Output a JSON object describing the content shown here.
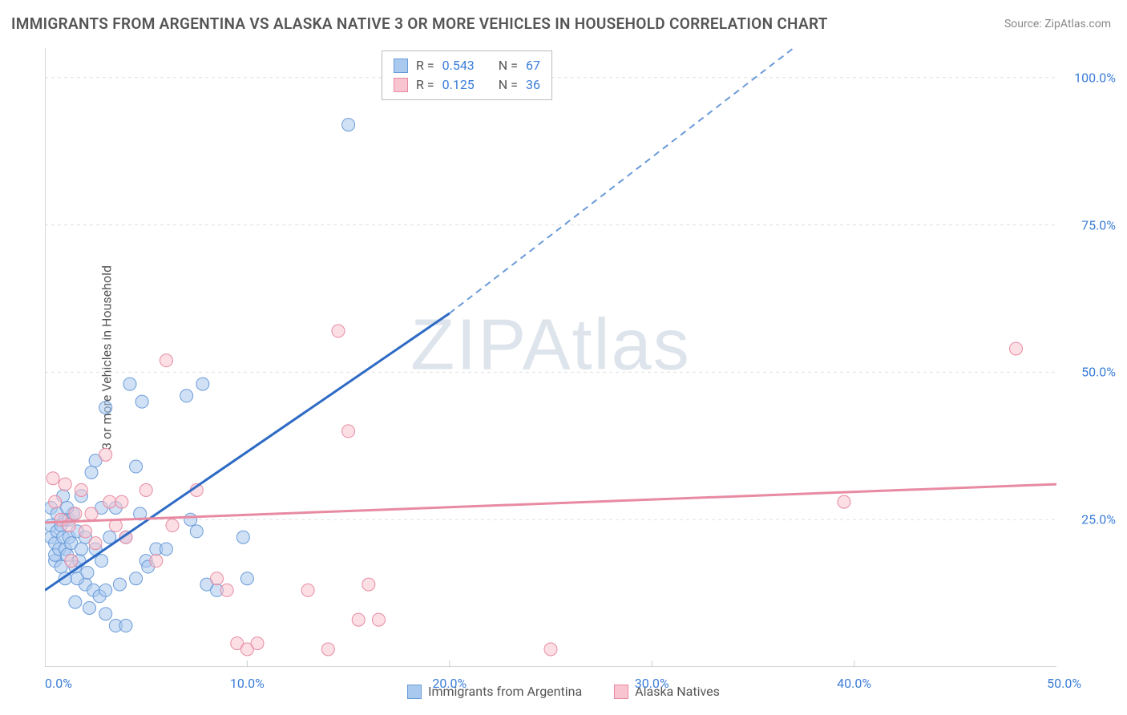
{
  "title": "IMMIGRANTS FROM ARGENTINA VS ALASKA NATIVE 3 OR MORE VEHICLES IN HOUSEHOLD CORRELATION CHART",
  "source": "Source: ZipAtlas.com",
  "y_axis_label": "3 or more Vehicles in Household",
  "watermark": "ZIPAtlas",
  "chart": {
    "type": "scatter",
    "xlim": [
      0,
      50
    ],
    "ylim": [
      0,
      105
    ],
    "x_ticks": [
      0,
      10,
      20,
      30,
      40,
      50
    ],
    "y_ticks": [
      25,
      50,
      75,
      100
    ],
    "x_tick_labels": [
      "0.0%",
      "10.0%",
      "20.0%",
      "30.0%",
      "40.0%",
      "50.0%"
    ],
    "y_tick_labels": [
      "25.0%",
      "50.0%",
      "75.0%",
      "100.0%"
    ],
    "grid_color": "#e0e0e0",
    "axis_color": "#cccccc",
    "background_color": "#ffffff",
    "tick_label_color": "#3b7dd8",
    "marker_radius": 8,
    "marker_opacity": 0.55,
    "series": [
      {
        "name": "Immigrants from Argentina",
        "fill": "#a9c9ee",
        "stroke": "#6a9bd8",
        "points": [
          [
            0.3,
            22
          ],
          [
            0.3,
            24
          ],
          [
            0.3,
            27
          ],
          [
            0.5,
            18
          ],
          [
            0.5,
            21
          ],
          [
            0.5,
            19
          ],
          [
            0.6,
            23
          ],
          [
            0.6,
            26
          ],
          [
            0.7,
            20
          ],
          [
            0.8,
            24
          ],
          [
            0.8,
            17
          ],
          [
            0.9,
            29
          ],
          [
            0.9,
            22
          ],
          [
            1.0,
            20
          ],
          [
            1.0,
            15
          ],
          [
            1.0,
            25
          ],
          [
            1.1,
            19
          ],
          [
            1.2,
            25
          ],
          [
            1.2,
            22
          ],
          [
            1.3,
            21
          ],
          [
            1.4,
            26
          ],
          [
            1.5,
            17
          ],
          [
            1.5,
            11
          ],
          [
            1.6,
            23
          ],
          [
            1.7,
            18
          ],
          [
            1.8,
            29
          ],
          [
            1.8,
            20
          ],
          [
            2.0,
            14
          ],
          [
            2.0,
            22
          ],
          [
            2.1,
            16
          ],
          [
            2.2,
            10
          ],
          [
            2.3,
            33
          ],
          [
            2.4,
            13
          ],
          [
            2.5,
            35
          ],
          [
            2.5,
            20
          ],
          [
            2.7,
            12
          ],
          [
            2.8,
            27
          ],
          [
            3.0,
            13
          ],
          [
            3.0,
            9
          ],
          [
            3.0,
            44
          ],
          [
            3.2,
            22
          ],
          [
            3.5,
            27
          ],
          [
            3.5,
            7
          ],
          [
            3.7,
            14
          ],
          [
            4.0,
            22
          ],
          [
            4.0,
            7
          ],
          [
            4.2,
            48
          ],
          [
            4.5,
            34
          ],
          [
            4.5,
            15
          ],
          [
            4.7,
            26
          ],
          [
            4.8,
            45
          ],
          [
            5.0,
            18
          ],
          [
            5.1,
            17
          ],
          [
            5.5,
            20
          ],
          [
            7.0,
            46
          ],
          [
            7.5,
            23
          ],
          [
            7.2,
            25
          ],
          [
            7.8,
            48
          ],
          [
            8.0,
            14
          ],
          [
            8.5,
            13
          ],
          [
            9.8,
            22
          ],
          [
            15,
            92
          ],
          [
            10.0,
            15
          ],
          [
            6.0,
            20
          ],
          [
            2.8,
            18
          ],
          [
            1.6,
            15
          ],
          [
            1.1,
            27
          ]
        ],
        "trend": {
          "x1": 0,
          "y1": 13,
          "x2": 20,
          "y2": 60,
          "dash_x2": 37,
          "dash_y2": 105,
          "stroke_width": 2
        }
      },
      {
        "name": "Alaska Natives",
        "fill": "#f7c4d0",
        "stroke": "#e88aa2",
        "points": [
          [
            0.4,
            32
          ],
          [
            0.5,
            28
          ],
          [
            0.8,
            25
          ],
          [
            1.0,
            31
          ],
          [
            1.2,
            24
          ],
          [
            1.3,
            18
          ],
          [
            1.5,
            26
          ],
          [
            1.8,
            30
          ],
          [
            2.0,
            23
          ],
          [
            2.3,
            26
          ],
          [
            2.5,
            21
          ],
          [
            3.0,
            36
          ],
          [
            3.2,
            28
          ],
          [
            3.5,
            24
          ],
          [
            3.8,
            28
          ],
          [
            4.0,
            22
          ],
          [
            5.0,
            30
          ],
          [
            5.5,
            18
          ],
          [
            6.0,
            52
          ],
          [
            6.3,
            24
          ],
          [
            7.5,
            30
          ],
          [
            8.5,
            15
          ],
          [
            9.0,
            13
          ],
          [
            9.5,
            4
          ],
          [
            10.0,
            3
          ],
          [
            10.5,
            4
          ],
          [
            13.0,
            13
          ],
          [
            14.0,
            3
          ],
          [
            14.5,
            57
          ],
          [
            15.0,
            40
          ],
          [
            15.5,
            8
          ],
          [
            16.0,
            14
          ],
          [
            16.5,
            8
          ],
          [
            25.0,
            3
          ],
          [
            39.5,
            28
          ],
          [
            48.0,
            54
          ]
        ],
        "trend": {
          "x1": 0,
          "y1": 24.5,
          "x2": 50,
          "y2": 31,
          "stroke_width": 2
        }
      }
    ],
    "stats": [
      {
        "series": 0,
        "R": "0.543",
        "N": "67"
      },
      {
        "series": 1,
        "R": "0.125",
        "N": "36"
      }
    ]
  }
}
